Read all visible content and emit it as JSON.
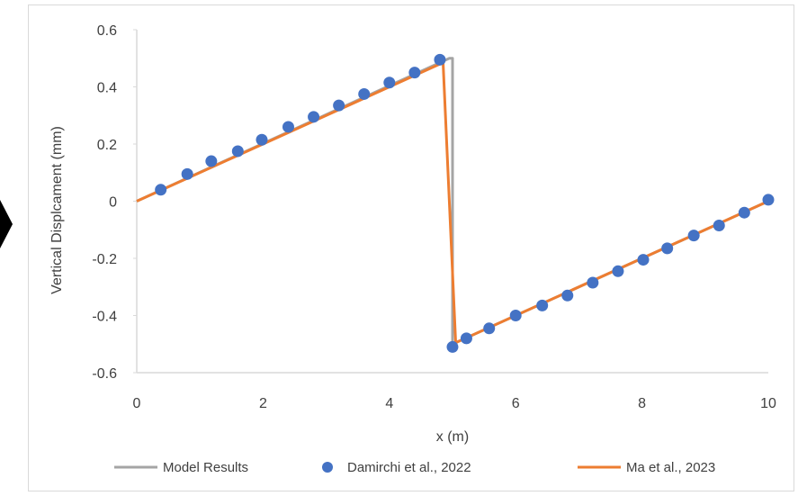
{
  "chart_data": {
    "type": "line",
    "title": "",
    "xlabel": "x (m)",
    "ylabel": "Vertical Displcament (mm)",
    "xlim": [
      0,
      10
    ],
    "ylim": [
      -0.6,
      0.6
    ],
    "xticks": [
      0,
      2,
      4,
      6,
      8,
      10
    ],
    "yticks": [
      -0.6,
      -0.4,
      -0.2,
      0,
      0.2,
      0.4,
      0.6
    ],
    "xtick_labels": [
      "0",
      "2",
      "4",
      "6",
      "8",
      "10"
    ],
    "ytick_labels": [
      "-0.6",
      "-0.4",
      "-0.2",
      "0",
      "0.2",
      "0.4",
      "0.6"
    ],
    "grid": false,
    "legend_position": "bottom",
    "series": [
      {
        "name": "Model Results",
        "style": "line",
        "color": "#a5a5a5",
        "x": [
          0,
          4.95,
          5.0,
          5.0,
          10
        ],
        "y": [
          0,
          0.5,
          0.5,
          -0.5,
          0
        ]
      },
      {
        "name": "Damirchi et al., 2022",
        "style": "markers",
        "color": "#4472c4",
        "x": [
          0.38,
          0.8,
          1.18,
          1.6,
          1.98,
          2.4,
          2.8,
          3.2,
          3.6,
          4.0,
          4.4,
          4.8,
          5.0,
          5.22,
          5.58,
          6.0,
          6.42,
          6.82,
          7.22,
          7.62,
          8.02,
          8.4,
          8.82,
          9.22,
          9.62,
          10.0
        ],
        "y": [
          0.04,
          0.095,
          0.14,
          0.175,
          0.215,
          0.26,
          0.295,
          0.335,
          0.375,
          0.415,
          0.45,
          0.495,
          -0.51,
          -0.48,
          -0.445,
          -0.4,
          -0.365,
          -0.33,
          -0.285,
          -0.245,
          -0.205,
          -0.165,
          -0.12,
          -0.085,
          -0.04,
          0.005
        ]
      },
      {
        "name": "Ma et al., 2023",
        "style": "line",
        "color": "#ed7d31",
        "x": [
          0,
          4.85,
          5.05,
          10
        ],
        "y": [
          0,
          0.485,
          -0.495,
          0
        ]
      }
    ]
  }
}
